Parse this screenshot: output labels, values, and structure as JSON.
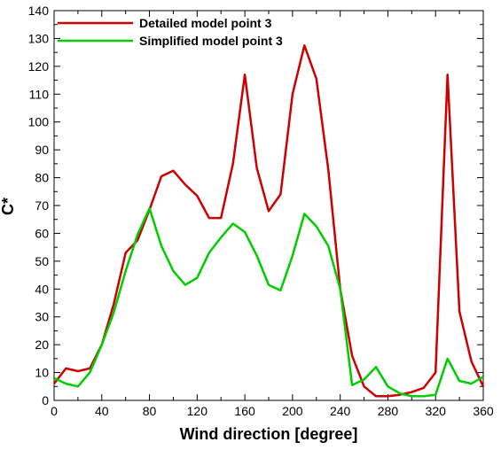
{
  "chart_data": {
    "type": "line",
    "title": "",
    "xlabel": "Wind direction [degree]",
    "ylabel": "C*",
    "xlim": [
      0,
      360
    ],
    "ylim": [
      0,
      140
    ],
    "xticks": [
      0,
      40,
      80,
      120,
      160,
      200,
      240,
      280,
      320,
      360
    ],
    "yticks": [
      0,
      10,
      20,
      30,
      40,
      50,
      60,
      70,
      80,
      90,
      100,
      110,
      120,
      130,
      140
    ],
    "grid": false,
    "legend_position": "top-center",
    "series": [
      {
        "name": "Detailed model point 3",
        "color": "#cc0000",
        "x": [
          0,
          10,
          20,
          30,
          40,
          50,
          60,
          70,
          80,
          90,
          100,
          110,
          120,
          130,
          140,
          150,
          160,
          170,
          180,
          190,
          200,
          210,
          220,
          230,
          240,
          250,
          260,
          270,
          280,
          290,
          300,
          310,
          320,
          330,
          340,
          350,
          360
        ],
        "y": [
          6,
          11.5,
          10.5,
          11.5,
          20,
          34.5,
          53,
          57.5,
          68.5,
          80.5,
          82.5,
          77.5,
          73.5,
          65.5,
          65.5,
          85,
          117,
          83.5,
          68,
          74,
          110,
          127.5,
          115.5,
          83,
          40,
          16,
          5,
          1.5,
          1.5,
          2,
          3,
          4.5,
          10,
          117,
          32,
          14,
          5
        ]
      },
      {
        "name": "Simplified model point 3",
        "color": "#00cc00",
        "x": [
          0,
          10,
          20,
          30,
          40,
          50,
          60,
          70,
          80,
          90,
          100,
          110,
          120,
          130,
          140,
          150,
          160,
          170,
          180,
          190,
          200,
          210,
          220,
          230,
          240,
          250,
          260,
          270,
          280,
          290,
          300,
          310,
          320,
          330,
          340,
          350,
          360
        ],
        "y": [
          8,
          6,
          5,
          10,
          20,
          31.5,
          46.5,
          59.5,
          69,
          55.5,
          46.5,
          41.5,
          44,
          53,
          58.5,
          63.5,
          60.5,
          52,
          41.5,
          39.5,
          52,
          67,
          62.5,
          55.5,
          40,
          5.5,
          7.5,
          12,
          5,
          2.5,
          1.5,
          1.5,
          2,
          15,
          7,
          6,
          8.5
        ]
      }
    ]
  }
}
